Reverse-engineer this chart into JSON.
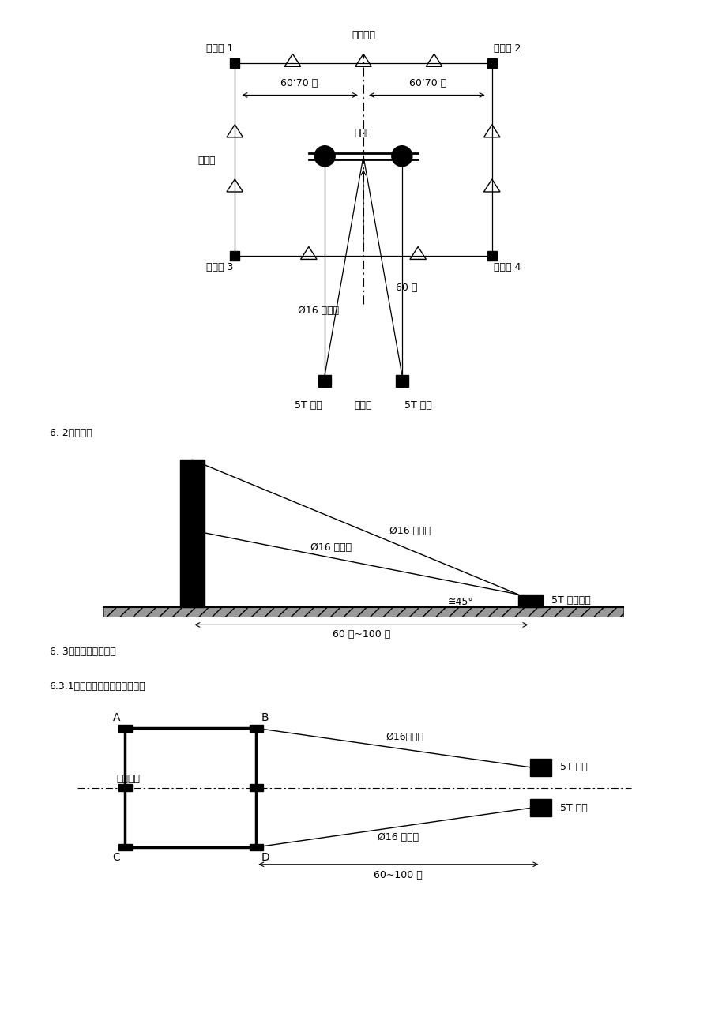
{
  "bg_color": "#ffffff",
  "title1": "6. 2立面图：",
  "title2": "6. 3铁塔拆除示意图：",
  "title3": "6.3.1拆除警戝与水泥杆拆除一致",
  "d1_centerline": "线路中线",
  "d1_jd1": "警戝点 1",
  "d1_jd2": "警戝点 2",
  "d1_jd3": "警戝点 3",
  "d1_jd4": "警戝点 4",
  "d1_dist1": "60‘70 米",
  "d1_dist2": "60‘70 米",
  "d1_pole": "水泥杆",
  "d1_flag": "三角旗",
  "d1_steel": "Ø16 钉丝绳",
  "d1_60m": "60 米",
  "d1_winch1": "5T 绥磨",
  "d1_winch2": "5T 绥磨",
  "d1_commander": "总指挥",
  "d2_label1": "Ø16 钉丝绳",
  "d2_label2": "Ø16 钉丝绳",
  "d2_angle": "≅45°",
  "d2_winch": "5T 机动绥磨",
  "d2_dist": "60 米~100 米",
  "d3_A": "A",
  "d3_B": "B",
  "d3_C": "C",
  "d3_D": "D",
  "d3_centerline": "线路中线",
  "d3_steel1": "Ø16钉丝绳",
  "d3_steel2": "Ø16 钉丝绳",
  "d3_winch1": "5T 绥磨",
  "d3_winch2": "5T 绥磨",
  "d3_dist": "60~100 米"
}
